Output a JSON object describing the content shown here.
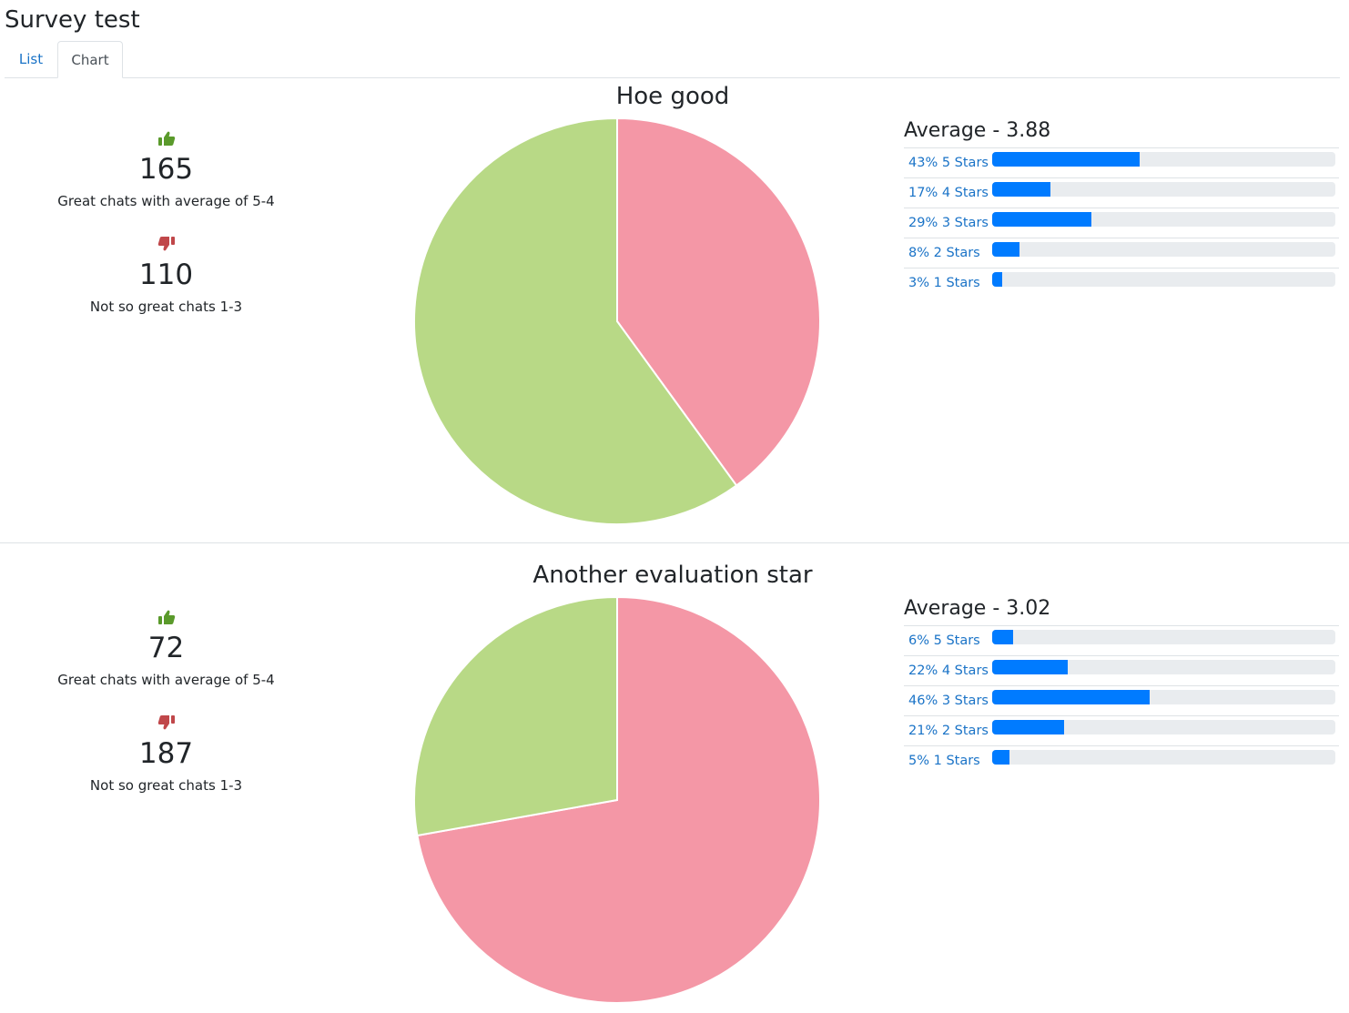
{
  "page_title": "Survey test",
  "tabs": [
    {
      "label": "List",
      "active": false
    },
    {
      "label": "Chart",
      "active": true
    }
  ],
  "colors": {
    "positive": "#b8d986",
    "negative": "#f497a6",
    "bar": "#007bff",
    "thumb_up": "#5a9a2b",
    "thumb_down": "#c0474a"
  },
  "sections": [
    {
      "chart_title": "Hoe good",
      "good": {
        "count": "165",
        "label": "Great chats with average of 5-4"
      },
      "bad": {
        "count": "110",
        "label": "Not so great chats 1-3"
      },
      "average_title": "Average - 3.88",
      "ratings": [
        {
          "label": "43% 5 Stars",
          "percent": 43
        },
        {
          "label": "17% 4 Stars",
          "percent": 17
        },
        {
          "label": "29% 3 Stars",
          "percent": 29
        },
        {
          "label": "8% 2 Stars",
          "percent": 8
        },
        {
          "label": "3% 1 Stars",
          "percent": 3
        }
      ]
    },
    {
      "chart_title": "Another evaluation star",
      "good": {
        "count": "72",
        "label": "Great chats with average of 5-4"
      },
      "bad": {
        "count": "187",
        "label": "Not so great chats 1-3"
      },
      "average_title": "Average - 3.02",
      "ratings": [
        {
          "label": "6% 5 Stars",
          "percent": 6
        },
        {
          "label": "22% 4 Stars",
          "percent": 22
        },
        {
          "label": "46% 3 Stars",
          "percent": 46
        },
        {
          "label": "21% 2 Stars",
          "percent": 21
        },
        {
          "label": "5% 1 Stars",
          "percent": 5
        }
      ]
    }
  ],
  "chart_data": [
    {
      "type": "pie",
      "title": "Hoe good",
      "categories": [
        "Not so great chats 1-3",
        "Great chats with average of 5-4"
      ],
      "values": [
        110,
        165
      ]
    },
    {
      "type": "pie",
      "title": "Another evaluation star",
      "categories": [
        "Not so great chats 1-3",
        "Great chats with average of 5-4"
      ],
      "values": [
        187,
        72
      ]
    }
  ]
}
